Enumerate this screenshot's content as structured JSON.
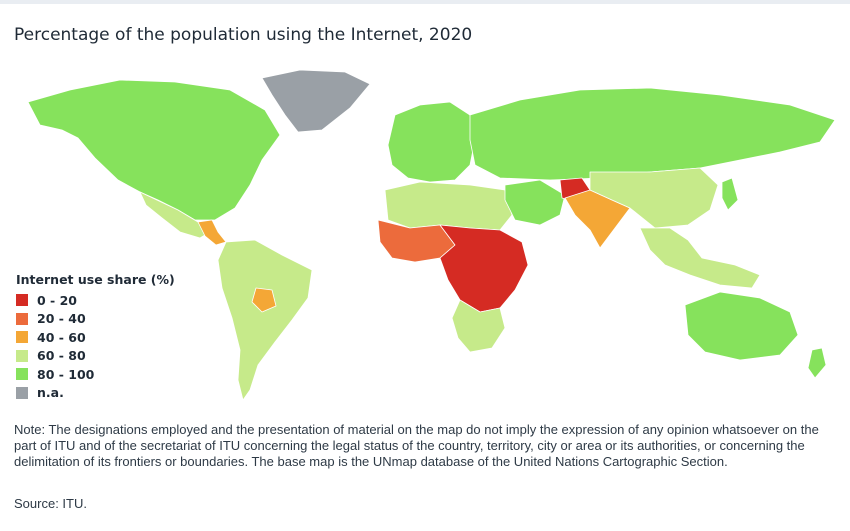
{
  "title": "Percentage of the population using the Internet, 2020",
  "legend": {
    "title": "Internet use share (%)",
    "items": [
      {
        "label": "0 - 20",
        "color": "#d52b23"
      },
      {
        "label": "20 - 40",
        "color": "#ec6b3c"
      },
      {
        "label": "40 - 60",
        "color": "#f4a736"
      },
      {
        "label": "60 - 80",
        "color": "#c6ea8a"
      },
      {
        "label": "80 - 100",
        "color": "#86e25c"
      },
      {
        "label": "n.a.",
        "color": "#9aa0a6"
      }
    ]
  },
  "note": "Note: The designations employed and the presentation of material on the map do not imply the expression of any opinion whatsoever on the part of ITU and of the secretariat of ITU concerning the legal status of the country, territory, city or area or its authorities, or concerning the delimitation of its frontiers or boundaries. The base map is the UNmap database of the United Nations Cartographic Section.",
  "source": "Source: ITU.",
  "regions": [
    {
      "name": "north-america",
      "share": "80 - 100"
    },
    {
      "name": "greenland",
      "share": "n.a."
    },
    {
      "name": "mexico",
      "share": "60 - 80"
    },
    {
      "name": "central-america",
      "share": "40 - 60"
    },
    {
      "name": "south-america",
      "share": "60 - 80"
    },
    {
      "name": "bolivia",
      "share": "40 - 60"
    },
    {
      "name": "europe",
      "share": "80 - 100"
    },
    {
      "name": "russia",
      "share": "80 - 100"
    },
    {
      "name": "west-africa",
      "share": "20 - 40"
    },
    {
      "name": "central-east-africa",
      "share": "0 - 20"
    },
    {
      "name": "southern-africa",
      "share": "60 - 80"
    },
    {
      "name": "south-asia",
      "share": "40 - 60"
    },
    {
      "name": "afghanistan",
      "share": "0 - 20"
    },
    {
      "name": "china",
      "share": "60 - 80"
    },
    {
      "name": "southeast-asia",
      "share": "60 - 80"
    },
    {
      "name": "australia",
      "share": "80 - 100"
    }
  ]
}
